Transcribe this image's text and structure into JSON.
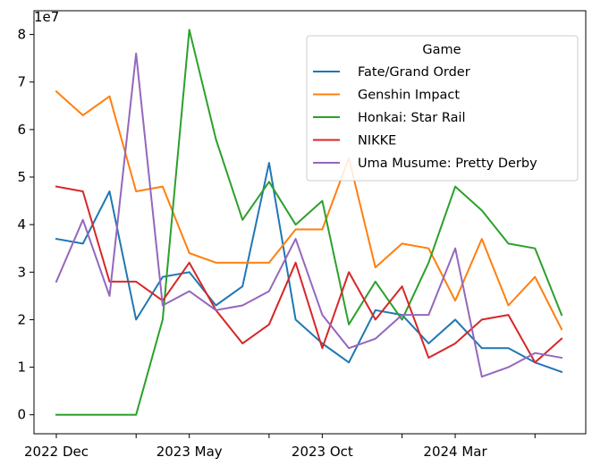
{
  "chart_data": {
    "type": "line",
    "scale_label": "1e7",
    "scale_factor": 10000000,
    "x": [
      "2022-12",
      "2023-01",
      "2023-02",
      "2023-03",
      "2023-04",
      "2023-05",
      "2023-06",
      "2023-07",
      "2023-08",
      "2023-09",
      "2023-10",
      "2023-11",
      "2023-12",
      "2024-01",
      "2024-02",
      "2024-03",
      "2024-04",
      "2024-05",
      "2024-06",
      "2024-07"
    ],
    "x_ticks": [
      {
        "x": "2022-12",
        "label": "2022 Dec"
      },
      {
        "x": "2023-03",
        "label": ""
      },
      {
        "x": "2023-05",
        "label": "2023 May"
      },
      {
        "x": "2023-08",
        "label": ""
      },
      {
        "x": "2023-10",
        "label": "2023 Oct"
      },
      {
        "x": "2024-01",
        "label": ""
      },
      {
        "x": "2024-03",
        "label": "2024 Mar"
      },
      {
        "x": "2024-06",
        "label": ""
      }
    ],
    "y_ticks": [
      0,
      1,
      2,
      3,
      4,
      5,
      6,
      7,
      8
    ],
    "ylim": [
      -0.4,
      8.5
    ],
    "legend": {
      "title": "Game",
      "placement": "top-right"
    },
    "series": [
      {
        "name": "Fate/Grand Order",
        "color": "#1f77b4",
        "values": [
          3.7,
          3.6,
          4.7,
          2.0,
          2.9,
          3.0,
          2.3,
          2.7,
          5.3,
          2.0,
          1.5,
          1.1,
          2.2,
          2.1,
          1.5,
          2.0,
          1.4,
          1.4,
          1.1,
          0.9
        ]
      },
      {
        "name": "Genshin Impact",
        "color": "#ff7f0e",
        "values": [
          6.8,
          6.3,
          6.7,
          4.7,
          4.8,
          3.4,
          3.2,
          3.2,
          3.2,
          3.9,
          3.9,
          5.4,
          3.1,
          3.6,
          3.5,
          2.4,
          3.7,
          2.3,
          2.9,
          1.8
        ]
      },
      {
        "name": "Honkai: Star Rail",
        "color": "#2ca02c",
        "values": [
          0,
          0,
          0,
          0,
          2.0,
          8.1,
          5.8,
          4.1,
          4.9,
          4.0,
          4.5,
          1.9,
          2.8,
          2.0,
          3.2,
          4.8,
          4.3,
          3.6,
          3.5,
          2.1
        ]
      },
      {
        "name": "NIKKE",
        "color": "#d62728",
        "values": [
          4.8,
          4.7,
          2.8,
          2.8,
          2.4,
          3.2,
          2.2,
          1.5,
          1.9,
          3.2,
          1.4,
          3.0,
          2.0,
          2.7,
          1.2,
          1.5,
          2.0,
          2.1,
          1.1,
          1.6
        ]
      },
      {
        "name": "Uma Musume: Pretty Derby",
        "color": "#9467bd",
        "values": [
          2.8,
          4.1,
          2.5,
          7.6,
          2.3,
          2.6,
          2.2,
          2.3,
          2.6,
          3.7,
          2.1,
          1.4,
          1.6,
          2.1,
          2.1,
          3.5,
          0.8,
          1.0,
          1.3,
          1.2
        ]
      }
    ]
  }
}
